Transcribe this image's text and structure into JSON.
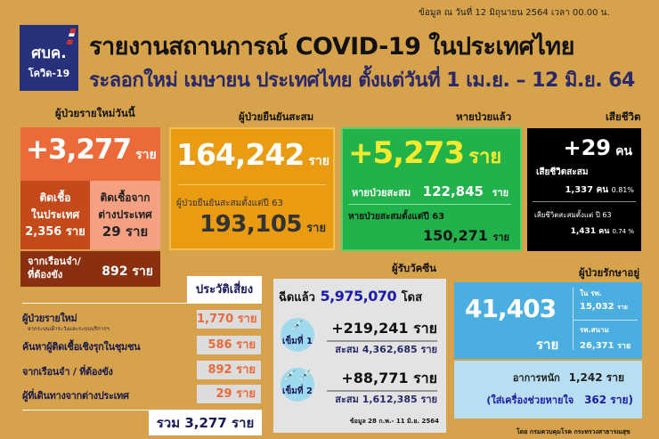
{
  "header": {
    "data_date": "ข้อมูล ณ วันที่ 12 มิถุนายน 2564 เวลา 00.00 น.",
    "logo": {
      "abbr": "ศบค.",
      "name": "โควิด-19"
    },
    "title": "รายงานสถานการณ์ COVID-19 ในประเทศไทย",
    "subtitle": "ระลอกใหม่ เมษายน ประเทศไทย ตั้งแต่วันที่ 1 เม.ย. – 12 มิ.ย. 64"
  },
  "new_cases": {
    "heading": "ผู้ป่วยรายใหม่วันนี้",
    "value": "+3,277",
    "unit": "ราย",
    "domestic": {
      "label1": "ติดเชื้อ",
      "label2": "ในประเทศ",
      "value": "2,356",
      "unit": "ราย"
    },
    "imported": {
      "label1": "ติดเชื้อจาก",
      "label2": "ต่างประเทศ",
      "value": "29",
      "unit": "ราย"
    },
    "prison": {
      "label1": "จากเรือนจำ/",
      "label2": "ที่ต้องขัง",
      "value": "892",
      "unit": "ราย"
    }
  },
  "confirmed": {
    "heading": "ผู้ป่วยยืนยันสะสม",
    "value": "164,242",
    "unit": "ราย",
    "since_label": "ผู้ป่วยยืนยันสะสมตั้งแต่ปี 63",
    "since_value": "193,105",
    "since_unit": "ราย"
  },
  "recovered": {
    "heading": "หายป่วยแล้ว",
    "value": "+5,273",
    "unit": "ราย",
    "cum_label": "หายป่วยสะสม",
    "cum_value": "122,845",
    "cum_unit": "ราย",
    "since_label": "หายป่วยสะสมตั้งแต่ปี 63",
    "since_value": "150,271",
    "since_unit": "ราย"
  },
  "deaths": {
    "heading": "เสียชีวิต",
    "value": "+29",
    "unit": "คน",
    "cum_label": "เสียชีวิตสะสม",
    "cum_value": "1,337 คน",
    "cum_pct": "0.81%",
    "since_label": "เสียชีวิตสะสมตั้งแต่ ปี 63",
    "since_value": "1,431 คน",
    "since_pct": "0.74 %"
  },
  "risk": {
    "heading": "ประวัติเสี่ยง",
    "rows": [
      {
        "label": "ผู้ป่วยรายใหม่",
        "sub": "จากระบบเฝ้าระวังและระบบบริการฯ",
        "value": "1,770 ราย"
      },
      {
        "label": "ค้นหาผู้ติดเชื้อเชิงรุกในชุมชน",
        "value": "586 ราย"
      },
      {
        "label": "จากเรือนจำ / ที่ต้องขัง",
        "value": "892 ราย"
      },
      {
        "label": "ผู้ที่เดินทางจากต่างประเทศ",
        "value": "29 ราย"
      }
    ],
    "total": "รวม 3,277 ราย"
  },
  "vaccine": {
    "heading": "ผู้รับวัคซีน",
    "injected_label": "ฉีดแล้ว",
    "injected_value": "5,975,070",
    "injected_unit": "โดส",
    "doses": [
      {
        "label": "เข็มที่ 1",
        "new": "+219,241 ราย",
        "cum": "สะสม 4,362,685 ราย"
      },
      {
        "label": "เข็มที่ 2",
        "new": "+88,771 ราย",
        "cum": "สะสม 1,612,385 ราย"
      }
    ],
    "note": "ข้อมูล 28 ก.พ.- 11 มิ.ย. 2564"
  },
  "hospitalized": {
    "heading": "ผู้ป่วยรักษาอยู่",
    "value": "41,403",
    "unit": "ราย",
    "hospital_label": "ใน รพ.",
    "hospital_value": "15,032",
    "hospital_unit": "ราย",
    "field_label": "รพ.สนาม",
    "field_value": "26,371",
    "field_unit": "ราย",
    "severe_label": "อาการหนัก",
    "severe_value": "1,242 ราย",
    "vent_label": "(ใส่เครื่องช่วยหายใจ",
    "vent_value": "362 ราย)"
  },
  "source": "โดย กรมควบคุมโรค กระทรวงสาธารณสุข",
  "colors": {
    "background": "#d6a24c",
    "new": "#ec6a3a",
    "confirmed": "#e89b12",
    "recovered": "#22b24c",
    "deaths": "#000000",
    "hospitalized": "#4aaee0"
  }
}
